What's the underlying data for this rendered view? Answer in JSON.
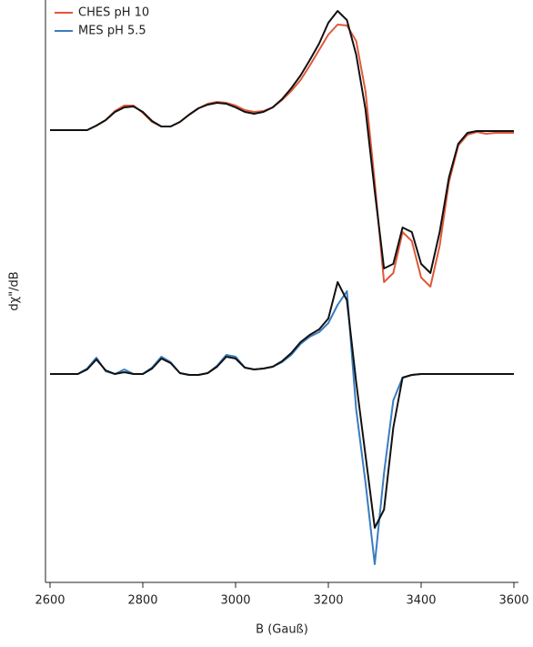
{
  "chart_data": {
    "type": "line",
    "x_label": "B (Gauß)",
    "y_label": "dχ\"/dB",
    "x": [
      2600,
      2620,
      2640,
      2660,
      2680,
      2700,
      2720,
      2740,
      2760,
      2780,
      2800,
      2820,
      2840,
      2860,
      2880,
      2900,
      2920,
      2940,
      2960,
      2980,
      3000,
      3020,
      3040,
      3060,
      3080,
      3100,
      3120,
      3140,
      3160,
      3180,
      3200,
      3220,
      3240,
      3260,
      3280,
      3300,
      3320,
      3340,
      3360,
      3380,
      3400,
      3420,
      3440,
      3460,
      3480,
      3500,
      3520,
      3540,
      3560,
      3580,
      3600
    ],
    "xlim": [
      2600,
      3600
    ],
    "xticks": [
      2600,
      2800,
      3000,
      3200,
      3400,
      3600
    ],
    "ylim": [
      0,
      640
    ],
    "legend": "top-left",
    "series": [
      {
        "name": "CHES pH 10",
        "color": "#e0583a",
        "values": [
          497,
          497,
          497,
          497,
          497,
          502,
          508,
          518,
          524,
          524,
          516,
          506,
          501,
          501,
          506,
          514,
          521,
          526,
          528,
          527,
          524,
          519,
          517,
          518,
          522,
          530,
          540,
          552,
          568,
          585,
          602,
          613,
          612,
          595,
          540,
          440,
          330,
          340,
          385,
          375,
          335,
          325,
          370,
          440,
          480,
          492,
          495,
          493,
          494,
          494,
          494
        ]
      },
      {
        "color": "#111111",
        "values": [
          497,
          497,
          497,
          497,
          497,
          502,
          508,
          517,
          522,
          523,
          517,
          507,
          501,
          501,
          506,
          514,
          521,
          525,
          527,
          526,
          522,
          517,
          515,
          517,
          522,
          531,
          543,
          557,
          574,
          592,
          615,
          628,
          618,
          580,
          520,
          430,
          345,
          350,
          390,
          385,
          350,
          340,
          385,
          445,
          482,
          494,
          496,
          496,
          496,
          496,
          496
        ]
      },
      {
        "name": "MES pH 5.5",
        "color": "#3a7cc0",
        "values": [
          229,
          229,
          229,
          229,
          235,
          247,
          232,
          229,
          234,
          229,
          229,
          236,
          248,
          242,
          230,
          228,
          228,
          230,
          238,
          250,
          248,
          236,
          234,
          235,
          237,
          242,
          250,
          262,
          270,
          275,
          285,
          305,
          320,
          190,
          110,
          20,
          120,
          200,
          225,
          228,
          229,
          229,
          229,
          229,
          229,
          229,
          229,
          229,
          229,
          229,
          229
        ]
      },
      {
        "color": "#111111",
        "values": [
          229,
          229,
          229,
          229,
          234,
          245,
          233,
          229,
          231,
          229,
          229,
          235,
          246,
          241,
          230,
          228,
          228,
          230,
          237,
          248,
          246,
          236,
          234,
          235,
          237,
          243,
          252,
          264,
          272,
          278,
          290,
          330,
          310,
          220,
          140,
          60,
          80,
          170,
          225,
          228,
          229,
          229,
          229,
          229,
          229,
          229,
          229,
          229,
          229,
          229,
          229
        ]
      }
    ]
  }
}
